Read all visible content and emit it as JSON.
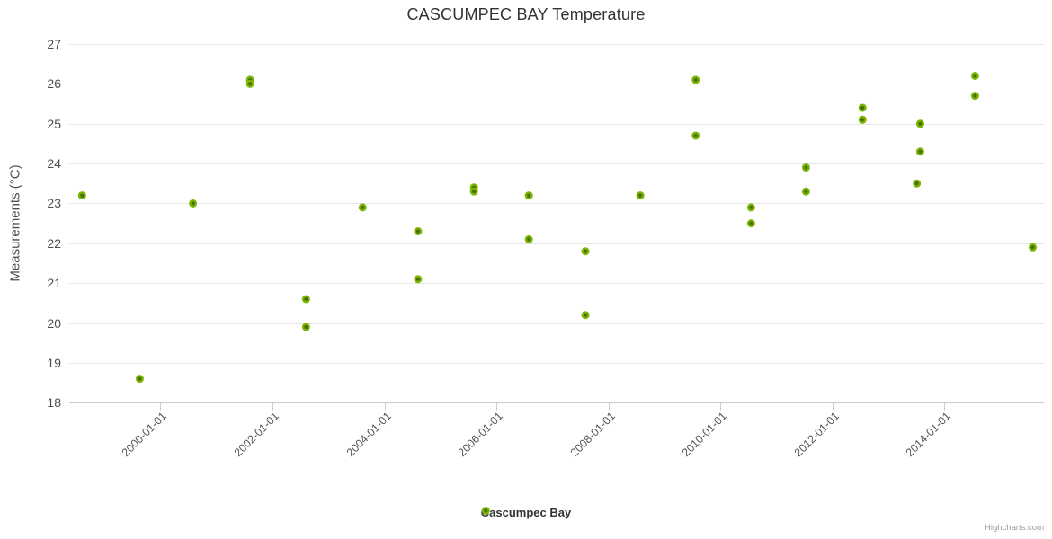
{
  "chart_data": {
    "type": "scatter",
    "title": "CASCUMPEC BAY Temperature",
    "xlabel": "",
    "ylabel": "Measurements (°C)",
    "ylim": [
      18,
      27
    ],
    "xlim": [
      1998.37,
      2015.78
    ],
    "grid": "horizontal",
    "legend_position": "bottom-center",
    "y_ticks": [
      27,
      26,
      25,
      24,
      23,
      22,
      21,
      20,
      19,
      18
    ],
    "x_ticks": [
      {
        "value": 2000,
        "label": "2000-01-01"
      },
      {
        "value": 2002,
        "label": "2002-01-01"
      },
      {
        "value": 2004,
        "label": "2004-01-01"
      },
      {
        "value": 2006,
        "label": "2006-01-01"
      },
      {
        "value": 2008,
        "label": "2008-01-01"
      },
      {
        "value": 2010,
        "label": "2010-01-01"
      },
      {
        "value": 2012,
        "label": "2012-01-01"
      },
      {
        "value": 2014,
        "label": "2014-01-01"
      }
    ],
    "series": [
      {
        "name": "Cascumpec Bay",
        "marker_color": "#7CB500",
        "marker_center_color": "#456F00",
        "points": [
          {
            "x": 1998.6,
            "y": 23.2
          },
          {
            "x": 1999.63,
            "y": 18.6
          },
          {
            "x": 2000.58,
            "y": 23.0
          },
          {
            "x": 2001.6,
            "y": 26.1
          },
          {
            "x": 2001.6,
            "y": 26.0
          },
          {
            "x": 2002.6,
            "y": 20.6
          },
          {
            "x": 2002.6,
            "y": 19.9
          },
          {
            "x": 2003.61,
            "y": 22.9
          },
          {
            "x": 2004.6,
            "y": 22.3
          },
          {
            "x": 2004.6,
            "y": 21.1
          },
          {
            "x": 2005.6,
            "y": 23.4
          },
          {
            "x": 2005.6,
            "y": 23.3
          },
          {
            "x": 2006.58,
            "y": 23.2
          },
          {
            "x": 2006.58,
            "y": 22.1
          },
          {
            "x": 2007.59,
            "y": 21.8
          },
          {
            "x": 2007.59,
            "y": 20.2
          },
          {
            "x": 2008.57,
            "y": 23.2
          },
          {
            "x": 2009.56,
            "y": 26.1
          },
          {
            "x": 2009.56,
            "y": 24.7
          },
          {
            "x": 2010.55,
            "y": 22.9
          },
          {
            "x": 2010.55,
            "y": 22.5
          },
          {
            "x": 2011.53,
            "y": 23.9
          },
          {
            "x": 2011.53,
            "y": 23.3
          },
          {
            "x": 2012.54,
            "y": 25.4
          },
          {
            "x": 2012.54,
            "y": 25.1
          },
          {
            "x": 2013.51,
            "y": 23.5
          },
          {
            "x": 2013.57,
            "y": 25.0
          },
          {
            "x": 2013.57,
            "y": 24.3
          },
          {
            "x": 2014.55,
            "y": 26.2
          },
          {
            "x": 2014.55,
            "y": 25.7
          },
          {
            "x": 2015.58,
            "y": 21.9
          }
        ]
      }
    ],
    "colors": {
      "grid_line": "#e6e6e6",
      "axis_line": "#cccccc",
      "tick_mark": "#cccccc",
      "title_text": "#333333",
      "axis_label_text": "#555555",
      "legend_text": "#333333",
      "credits_text": "#999999"
    }
  },
  "legend": {
    "label": "Cascumpec Bay"
  },
  "credits": {
    "label": "Highcharts.com"
  }
}
